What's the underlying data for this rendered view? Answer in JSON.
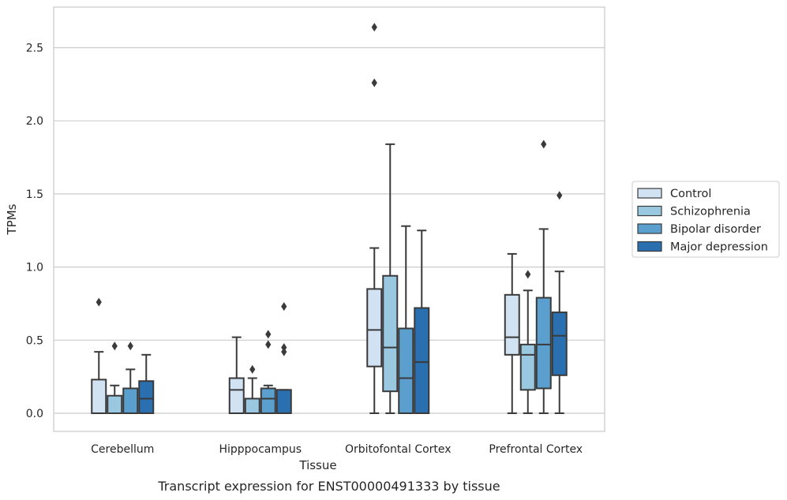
{
  "chart_data": {
    "type": "boxplot",
    "caption": "Transcript expression for ENST00000491333 by tissue",
    "xlabel": "Tissue",
    "ylabel": "TPMs",
    "ylim": [
      -0.13,
      2.78
    ],
    "yticks": [
      0.0,
      0.5,
      1.0,
      1.5,
      2.0,
      2.5
    ],
    "ytick_labels": [
      "0.0",
      "0.5",
      "1.0",
      "1.5",
      "2.0",
      "2.5"
    ],
    "grid": true,
    "legend_position": "right",
    "categories": [
      "Cerebellum",
      "Hipppocampus",
      "Orbitofontal Cortex",
      "Prefrontal Cortex"
    ],
    "series": [
      {
        "name": "Control",
        "color": "#d1e2f2",
        "boxes": [
          {
            "whislo": 0.0,
            "q1": 0.0,
            "med": 0.0,
            "q3": 0.23,
            "whishi": 0.42,
            "fliers": [
              0.76
            ]
          },
          {
            "whislo": 0.0,
            "q1": 0.0,
            "med": 0.16,
            "q3": 0.24,
            "whishi": 0.52,
            "fliers": []
          },
          {
            "whislo": 0.0,
            "q1": 0.32,
            "med": 0.57,
            "q3": 0.85,
            "whishi": 1.13,
            "fliers": [
              2.26,
              2.64
            ]
          },
          {
            "whislo": 0.0,
            "q1": 0.4,
            "med": 0.52,
            "q3": 0.81,
            "whishi": 1.09,
            "fliers": []
          }
        ]
      },
      {
        "name": "Schizophrenia",
        "color": "#9ac8e0",
        "boxes": [
          {
            "whislo": 0.0,
            "q1": 0.0,
            "med": 0.0,
            "q3": 0.12,
            "whishi": 0.19,
            "fliers": [
              0.46
            ]
          },
          {
            "whislo": 0.0,
            "q1": 0.0,
            "med": 0.0,
            "q3": 0.1,
            "whishi": 0.24,
            "fliers": [
              0.3
            ]
          },
          {
            "whislo": 0.0,
            "q1": 0.15,
            "med": 0.45,
            "q3": 0.94,
            "whishi": 1.84,
            "fliers": []
          },
          {
            "whislo": 0.0,
            "q1": 0.16,
            "med": 0.4,
            "q3": 0.47,
            "whishi": 0.84,
            "fliers": [
              0.95
            ]
          }
        ]
      },
      {
        "name": "Bipolar disorder",
        "color": "#5a9fcd",
        "boxes": [
          {
            "whislo": 0.0,
            "q1": 0.0,
            "med": 0.0,
            "q3": 0.17,
            "whishi": 0.3,
            "fliers": [
              0.46
            ]
          },
          {
            "whislo": 0.0,
            "q1": 0.0,
            "med": 0.1,
            "q3": 0.17,
            "whishi": 0.19,
            "fliers": [
              0.47,
              0.54
            ]
          },
          {
            "whislo": 0.0,
            "q1": 0.0,
            "med": 0.24,
            "q3": 0.58,
            "whishi": 1.28,
            "fliers": []
          },
          {
            "whislo": 0.0,
            "q1": 0.17,
            "med": 0.47,
            "q3": 0.79,
            "whishi": 1.26,
            "fliers": [
              1.84
            ]
          }
        ]
      },
      {
        "name": "Major depression",
        "color": "#2a6fb0",
        "boxes": [
          {
            "whislo": 0.0,
            "q1": 0.0,
            "med": 0.1,
            "q3": 0.22,
            "whishi": 0.4,
            "fliers": []
          },
          {
            "whislo": 0.0,
            "q1": 0.0,
            "med": 0.0,
            "q3": 0.16,
            "whishi": 0.16,
            "fliers": [
              0.42,
              0.45,
              0.73
            ]
          },
          {
            "whislo": 0.0,
            "q1": 0.0,
            "med": 0.35,
            "q3": 0.72,
            "whishi": 1.25,
            "fliers": []
          },
          {
            "whislo": 0.0,
            "q1": 0.26,
            "med": 0.53,
            "q3": 0.69,
            "whishi": 0.97,
            "fliers": [
              1.49
            ]
          }
        ]
      }
    ]
  }
}
